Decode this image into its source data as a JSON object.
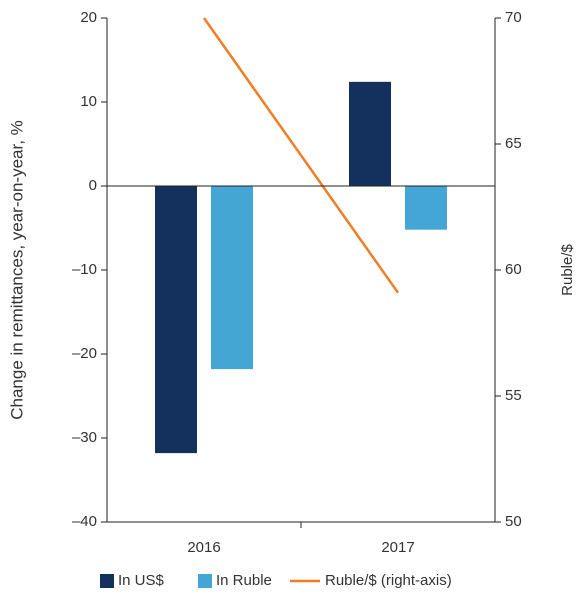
{
  "chart_data": {
    "type": "bar",
    "categories": [
      "2016",
      "2017"
    ],
    "series": [
      {
        "name": "In US$",
        "color": "#13315c",
        "values": [
          -31.8,
          12.4
        ]
      },
      {
        "name": "In Ruble",
        "color": "#44a6d5",
        "values": [
          -21.8,
          -5.2
        ]
      },
      {
        "name": "Ruble/$ (right-axis)",
        "color": "#f07e26",
        "type": "line",
        "axis": "y2",
        "values": [
          70,
          59.1
        ]
      }
    ],
    "ylabel": "Change in remittances, year-on-year, %",
    "y2label": "Ruble/$",
    "ylim": [
      -40,
      20
    ],
    "yticks": [
      {
        "value": -40,
        "label": "–40"
      },
      {
        "value": -30,
        "label": "–30"
      },
      {
        "value": -20,
        "label": "–20"
      },
      {
        "value": -10,
        "label": "–10"
      },
      0,
      10,
      20
    ],
    "y2lim": [
      50,
      70
    ],
    "y2ticks": [
      50,
      55,
      60,
      65,
      70
    ],
    "legend": "bottom"
  }
}
